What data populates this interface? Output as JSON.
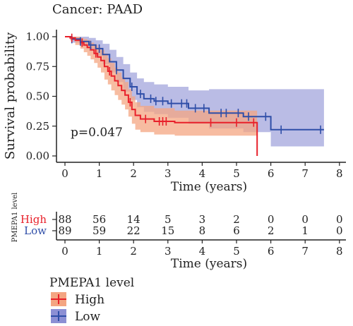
{
  "header": {
    "title": "Cancer: PAAD"
  },
  "colors": {
    "high": "#e8202a",
    "low": "#2f4ea8",
    "high_band": "#f4a582",
    "low_band": "#8c8fd4"
  },
  "chart_data": {
    "type": "line",
    "subtype": "kaplan-meier",
    "title": "Cancer: PAAD",
    "xlabel": "Time (years)",
    "ylabel": "Survival probability",
    "xlim": [
      0,
      8
    ],
    "ylim": [
      0,
      1
    ],
    "x_ticks": [
      "0",
      "1",
      "2",
      "3",
      "4",
      "5",
      "6",
      "7",
      "8"
    ],
    "y_ticks": [
      "0.00",
      "0.25",
      "0.50",
      "0.75",
      "1.00"
    ],
    "annotation": "p=0.047",
    "grid": false,
    "series": [
      {
        "name": "High",
        "steps": [
          [
            0,
            1.0
          ],
          [
            0.15,
            0.99
          ],
          [
            0.3,
            0.97
          ],
          [
            0.45,
            0.95
          ],
          [
            0.55,
            0.93
          ],
          [
            0.65,
            0.91
          ],
          [
            0.75,
            0.89
          ],
          [
            0.85,
            0.86
          ],
          [
            0.95,
            0.83
          ],
          [
            1.05,
            0.8
          ],
          [
            1.15,
            0.75
          ],
          [
            1.25,
            0.71
          ],
          [
            1.35,
            0.67
          ],
          [
            1.45,
            0.63
          ],
          [
            1.55,
            0.59
          ],
          [
            1.65,
            0.55
          ],
          [
            1.75,
            0.51
          ],
          [
            1.85,
            0.45
          ],
          [
            1.95,
            0.39
          ],
          [
            2.05,
            0.34
          ],
          [
            2.2,
            0.31
          ],
          [
            2.6,
            0.29
          ],
          [
            3.2,
            0.28
          ],
          [
            5.6,
            0.0
          ]
        ],
        "end": 5.6,
        "censor": [
          0.2,
          0.5,
          0.9,
          1.3,
          1.9,
          2.35,
          2.75,
          2.85,
          2.95,
          4.25,
          5.0,
          5.5
        ],
        "band": {
          "upper": [
            1.0,
            1.0,
            1.0,
            0.99,
            0.98,
            0.97,
            0.95,
            0.93,
            0.91,
            0.89,
            0.86,
            0.82,
            0.78,
            0.74,
            0.7,
            0.66,
            0.62,
            0.56,
            0.5,
            0.45,
            0.42,
            0.4,
            0.38,
            0.36
          ],
          "lower": [
            1.0,
            0.97,
            0.93,
            0.9,
            0.87,
            0.84,
            0.81,
            0.78,
            0.74,
            0.7,
            0.64,
            0.6,
            0.55,
            0.51,
            0.47,
            0.43,
            0.39,
            0.33,
            0.27,
            0.22,
            0.2,
            0.18,
            0.17,
            0.0
          ]
        }
      },
      {
        "name": "Low",
        "steps": [
          [
            0,
            1.0
          ],
          [
            0.2,
            0.98
          ],
          [
            0.45,
            0.96
          ],
          [
            0.7,
            0.93
          ],
          [
            0.9,
            0.9
          ],
          [
            1.1,
            0.85
          ],
          [
            1.3,
            0.79
          ],
          [
            1.5,
            0.72
          ],
          [
            1.7,
            0.65
          ],
          [
            1.9,
            0.58
          ],
          [
            2.1,
            0.52
          ],
          [
            2.3,
            0.48
          ],
          [
            2.6,
            0.46
          ],
          [
            3.0,
            0.44
          ],
          [
            3.6,
            0.4
          ],
          [
            4.2,
            0.36
          ],
          [
            5.2,
            0.33
          ],
          [
            6.0,
            0.22
          ],
          [
            7.55,
            0.22
          ]
        ],
        "end": 7.55,
        "censor": [
          0.2,
          0.45,
          0.75,
          1.0,
          1.5,
          1.95,
          2.2,
          2.5,
          2.65,
          2.85,
          3.1,
          3.4,
          3.55,
          3.8,
          4.05,
          4.55,
          4.7,
          5.05,
          5.35,
          5.85,
          6.3,
          7.45
        ],
        "band": {
          "upper": [
            1.0,
            1.0,
            1.0,
            0.99,
            0.97,
            0.94,
            0.89,
            0.83,
            0.77,
            0.7,
            0.65,
            0.62,
            0.6,
            0.58,
            0.55,
            0.56,
            0.56,
            0.56,
            0.56
          ],
          "lower": [
            1.0,
            0.95,
            0.92,
            0.88,
            0.84,
            0.77,
            0.7,
            0.62,
            0.54,
            0.47,
            0.41,
            0.37,
            0.35,
            0.32,
            0.27,
            0.23,
            0.2,
            0.08,
            0.08
          ]
        }
      }
    ],
    "risk_table": {
      "ylabel": "PMEPA1 level",
      "xlabel": "Time (years)",
      "x_ticks": [
        "0",
        "1",
        "2",
        "3",
        "4",
        "5",
        "6",
        "7",
        "8"
      ],
      "rows": [
        {
          "name": "High",
          "values": [
            "88",
            "56",
            "14",
            "5",
            "3",
            "2",
            "0",
            "0",
            "0"
          ]
        },
        {
          "name": "Low",
          "values": [
            "89",
            "59",
            "22",
            "15",
            "8",
            "6",
            "2",
            "1",
            "0"
          ]
        }
      ]
    },
    "legend": {
      "title": "PMEPA1 level",
      "items": [
        "High",
        "Low"
      ],
      "placement": "bottom-left"
    }
  }
}
